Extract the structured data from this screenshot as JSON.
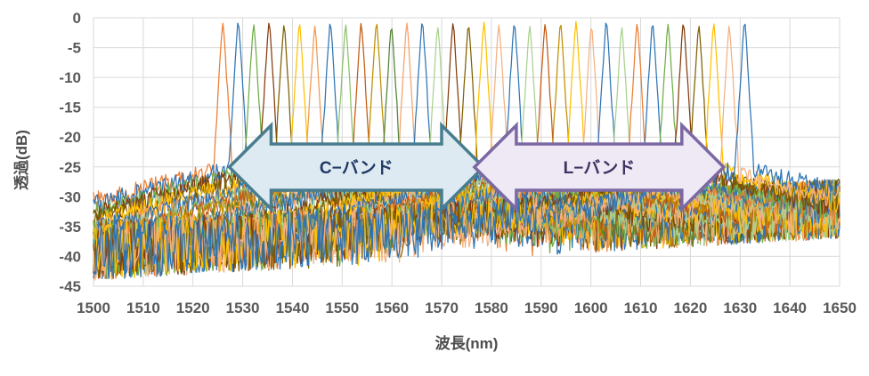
{
  "chart_data": {
    "type": "line",
    "title": "",
    "xlabel": "波長(nm)",
    "ylabel": "透過(dB)",
    "xlim": [
      1500,
      1650
    ],
    "ylim": [
      -45,
      0
    ],
    "x_ticks": [
      1500,
      1510,
      1520,
      1530,
      1540,
      1550,
      1560,
      1570,
      1580,
      1590,
      1600,
      1610,
      1620,
      1630,
      1640,
      1650
    ],
    "y_ticks": [
      0,
      -5,
      -10,
      -15,
      -20,
      -25,
      -30,
      -35,
      -40,
      -45
    ],
    "grid": true,
    "grid_color": "#d9d9d9",
    "tick_label_color": "#595959",
    "axis_title_color": "#4d4d4d",
    "legend": "none",
    "description": "35 overlaid bandpass-filter transmission spectra, channel spacing ~3.1 nm, peaks ~-1 dB spanning 1526-1631 nm, noise floor rising from about -44..-34 dB at 1500 nm to -37..-27 dB at 1650 nm",
    "peaks": [
      {
        "nm": 1526.0,
        "db": -0.8,
        "color": "#ED7D31"
      },
      {
        "nm": 1529.1,
        "db": -0.6,
        "color": "#2E75B6"
      },
      {
        "nm": 1532.2,
        "db": -1.0,
        "color": "#70AD47"
      },
      {
        "nm": 1535.3,
        "db": -0.7,
        "color": "#843C0C"
      },
      {
        "nm": 1538.3,
        "db": -1.2,
        "color": "#7F6000"
      },
      {
        "nm": 1541.4,
        "db": -0.8,
        "color": "#FFC000"
      },
      {
        "nm": 1544.5,
        "db": -1.4,
        "color": "#F09A52"
      },
      {
        "nm": 1547.6,
        "db": -0.7,
        "color": "#2E75B6"
      },
      {
        "nm": 1550.7,
        "db": -1.1,
        "color": "#8CC168"
      },
      {
        "nm": 1553.8,
        "db": -0.9,
        "color": "#C55A11"
      },
      {
        "nm": 1556.9,
        "db": -0.8,
        "color": "#BF8F00"
      },
      {
        "nm": 1559.9,
        "db": -1.3,
        "color": "#538135"
      },
      {
        "nm": 1563.0,
        "db": -1.0,
        "color": "#F4A26B"
      },
      {
        "nm": 1566.1,
        "db": -0.6,
        "color": "#2E75B6"
      },
      {
        "nm": 1569.2,
        "db": -1.5,
        "color": "#A9D18E"
      },
      {
        "nm": 1572.3,
        "db": -0.9,
        "color": "#843C0C"
      },
      {
        "nm": 1575.4,
        "db": -1.1,
        "color": "#7F6000"
      },
      {
        "nm": 1578.5,
        "db": -0.7,
        "color": "#FFC000"
      },
      {
        "nm": 1581.5,
        "db": -1.2,
        "color": "#F4B183"
      },
      {
        "nm": 1584.6,
        "db": -0.8,
        "color": "#2E75B6"
      },
      {
        "nm": 1587.7,
        "db": -1.4,
        "color": "#A9D18E"
      },
      {
        "nm": 1590.8,
        "db": -1.0,
        "color": "#C55A11"
      },
      {
        "nm": 1593.9,
        "db": -0.9,
        "color": "#BF8F00"
      },
      {
        "nm": 1597.0,
        "db": -0.7,
        "color": "#FFC000"
      },
      {
        "nm": 1600.1,
        "db": -1.3,
        "color": "#F4B183"
      },
      {
        "nm": 1603.1,
        "db": -0.6,
        "color": "#2E75B6"
      },
      {
        "nm": 1606.2,
        "db": -1.6,
        "color": "#A9D18E"
      },
      {
        "nm": 1609.3,
        "db": -0.9,
        "color": "#ED7D31"
      },
      {
        "nm": 1612.4,
        "db": -0.8,
        "color": "#2E75B6"
      },
      {
        "nm": 1615.5,
        "db": -1.1,
        "color": "#70AD47"
      },
      {
        "nm": 1618.6,
        "db": -0.7,
        "color": "#843C0C"
      },
      {
        "nm": 1621.7,
        "db": -1.2,
        "color": "#7F6000"
      },
      {
        "nm": 1624.7,
        "db": -0.9,
        "color": "#FFC000"
      },
      {
        "nm": 1627.8,
        "db": -1.4,
        "color": "#F4B183"
      },
      {
        "nm": 1630.9,
        "db": -0.6,
        "color": "#2E75B6"
      }
    ],
    "peak_model": {
      "steep_slope_db_per_nm": 14,
      "skirt_base_db": 24.5,
      "skirt_slope_db_per_nm": 0.22
    },
    "noise_floor": {
      "bottom_db_at_1500": -44,
      "bottom_db_at_1650": -37,
      "spike_range_db": 10
    },
    "bands": [
      {
        "id": "C",
        "label": "C−バンド",
        "tip_left_nm": 1527.3,
        "tip_right_nm": 1578.4,
        "fill": "#DEEAF2",
        "border": "#487D8F",
        "text_color": "#1F3864"
      },
      {
        "id": "L",
        "label": "L−バンド",
        "tip_left_nm": 1576.6,
        "tip_right_nm": 1626.7,
        "fill": "#EEE9F4",
        "border": "#7B68A4",
        "text_color": "#403162"
      }
    ]
  }
}
